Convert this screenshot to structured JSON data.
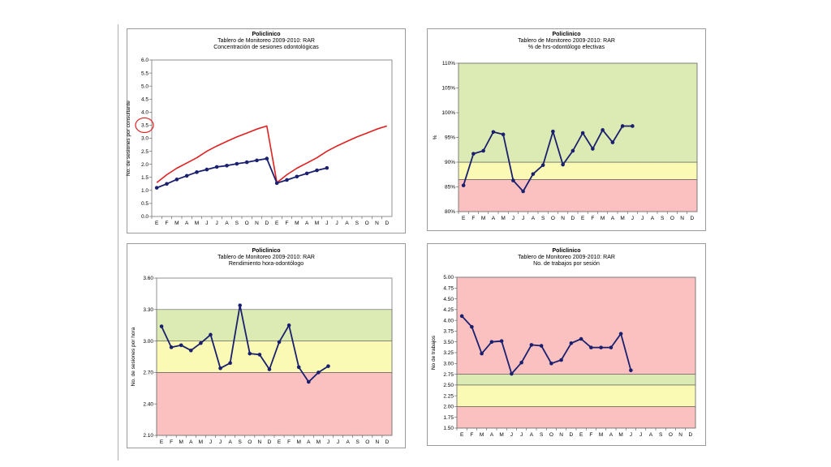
{
  "months": [
    "E",
    "F",
    "M",
    "A",
    "M",
    "J",
    "J",
    "A",
    "S",
    "O",
    "N",
    "D",
    "E",
    "F",
    "M",
    "A",
    "M",
    "J",
    "J",
    "A",
    "S",
    "O",
    "N",
    "D"
  ],
  "colors": {
    "red_line": "#e02020",
    "navy": "#1a1f6e",
    "green": "#dcebb4",
    "yellow": "#fafab4",
    "pink": "#fbc1c1"
  },
  "chart_data": [
    {
      "type": "line",
      "title": "Policlinico",
      "subtitle1": "Tablero de Monitoreo 2009-2010:  RAR",
      "subtitle2": "Concentración de sesiones odontológicas",
      "ylabel": "No. de sesiones por consultante",
      "yticks": [
        "6.0",
        "5.5",
        "5.0",
        "4.5",
        "4.0",
        "3.5",
        "3.0",
        "2.5",
        "2.0",
        "1.5",
        "1.0",
        "0.5",
        "0.0"
      ],
      "ylim": [
        0,
        6
      ],
      "highlight_tick": "3.5",
      "series": [
        {
          "color": "red",
          "values": [
            1.3,
            1.6,
            1.85,
            2.05,
            2.25,
            2.5,
            2.7,
            2.88,
            3.05,
            3.2,
            3.35,
            3.47,
            1.3,
            1.6,
            1.85,
            2.05,
            2.25,
            2.5,
            2.7,
            2.88,
            3.05,
            3.2,
            3.35,
            3.47
          ]
        },
        {
          "color": "navy",
          "values": [
            1.1,
            1.25,
            1.42,
            1.56,
            1.7,
            1.8,
            1.9,
            1.95,
            2.02,
            2.08,
            2.15,
            2.22,
            1.28,
            1.4,
            1.53,
            1.65,
            1.77,
            1.86,
            null,
            null,
            null,
            null,
            null,
            null
          ]
        }
      ]
    },
    {
      "type": "line",
      "title": "Policlinico",
      "subtitle1": "Tablero de Monitoreo 2009-2010:  RAR",
      "subtitle2": "% de hrs-odontólogo efectivas",
      "ylabel": "%",
      "yticks": [
        "110%",
        "105%",
        "100%",
        "95%",
        "90%",
        "85%",
        "80%"
      ],
      "ylim": [
        80,
        110
      ],
      "bands": [
        {
          "from": 80,
          "to": 86.5,
          "color": "pink"
        },
        {
          "from": 86.5,
          "to": 90,
          "color": "yellow"
        },
        {
          "from": 90,
          "to": 110,
          "color": "green"
        }
      ],
      "series": [
        {
          "color": "navy",
          "values": [
            85.3,
            91.7,
            92.3,
            96.1,
            95.6,
            86.3,
            84.1,
            87.6,
            89.4,
            96.2,
            89.5,
            92.3,
            95.9,
            92.7,
            96.5,
            94.0,
            97.3,
            97.3,
            null,
            null,
            null,
            null,
            null,
            null
          ]
        }
      ]
    },
    {
      "type": "line",
      "title": "Policlinico",
      "subtitle1": "Tablero de Monitoreo 2009-2010:  RAR",
      "subtitle2": "Rendimiento hora-odontólogo",
      "ylabel": "No. de sesiones por hora",
      "yticks": [
        "3.60",
        "3.30",
        "3.00",
        "2.70",
        "2.40",
        "2.10"
      ],
      "ylim": [
        2.1,
        3.6
      ],
      "bands": [
        {
          "from": 2.1,
          "to": 2.7,
          "color": "pink"
        },
        {
          "from": 2.7,
          "to": 3.0,
          "color": "yellow"
        },
        {
          "from": 3.0,
          "to": 3.3,
          "color": "green"
        }
      ],
      "series": [
        {
          "color": "navy",
          "values": [
            3.14,
            2.94,
            2.96,
            2.91,
            2.98,
            3.06,
            2.74,
            2.79,
            3.34,
            2.88,
            2.87,
            2.73,
            2.99,
            3.15,
            2.75,
            2.61,
            2.7,
            2.76,
            null,
            null,
            null,
            null,
            null,
            null
          ]
        }
      ]
    },
    {
      "type": "line",
      "title": "Policlinico",
      "subtitle1": "Tablero de Monitoreo 2009-2010:  RAR",
      "subtitle2": "No. de trabajos por sesión",
      "ylabel": "No de trabajos",
      "yticks": [
        "5.00",
        "4.75",
        "4.50",
        "4.25",
        "4.00",
        "3.75",
        "3.50",
        "3.25",
        "3.00",
        "2.75",
        "2.50",
        "2.25",
        "2.00",
        "1.75",
        "1.50"
      ],
      "ylim": [
        1.5,
        5.0
      ],
      "bands": [
        {
          "from": 1.5,
          "to": 2.0,
          "color": "pink"
        },
        {
          "from": 2.0,
          "to": 2.5,
          "color": "yellow"
        },
        {
          "from": 2.5,
          "to": 2.75,
          "color": "green"
        },
        {
          "from": 2.75,
          "to": 5.0,
          "color": "pink"
        }
      ],
      "series": [
        {
          "color": "navy",
          "values": [
            4.1,
            3.85,
            3.23,
            3.5,
            3.52,
            2.76,
            3.02,
            3.43,
            3.41,
            3.0,
            3.08,
            3.47,
            3.57,
            3.37,
            3.37,
            3.37,
            3.69,
            2.84,
            null,
            null,
            null,
            null,
            null,
            null
          ]
        }
      ]
    }
  ]
}
